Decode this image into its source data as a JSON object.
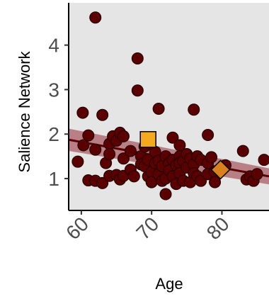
{
  "chart_data": {
    "type": "scatter",
    "title": "",
    "xlabel": "Age",
    "ylabel": "Salience Network",
    "xlim": [
      58.3,
      86.7
    ],
    "ylim": [
      0.3,
      4.95
    ],
    "xticks": [
      60,
      70,
      80
    ],
    "xtick_labels": [
      "60",
      "70",
      "80"
    ],
    "yticks": [
      1,
      2,
      3,
      4
    ],
    "ytick_labels": [
      "1",
      "2",
      "3",
      "4"
    ],
    "grid": false,
    "legend": "none",
    "colors": {
      "panel_background": "#e5e5e5",
      "points": "#5a0000",
      "point_outline": "#1a0000",
      "regression_line": "#5a0000",
      "confidence_band": "#a85e64",
      "square_marker": "#f5a91e",
      "diamond_marker": "#d9811c"
    },
    "series": [
      {
        "points": [
          [
            59.5,
            1.38
          ],
          [
            60.2,
            2.48
          ],
          [
            60.3,
            1.75
          ],
          [
            61,
            1.97
          ],
          [
            61,
            0.96
          ],
          [
            62,
            4.62
          ],
          [
            62,
            1.65
          ],
          [
            62,
            0.95
          ],
          [
            63,
            2.43
          ],
          [
            63,
            0.9
          ],
          [
            63.5,
            1.35
          ],
          [
            64,
            1.78
          ],
          [
            64,
            1.55
          ],
          [
            64,
            1.06
          ],
          [
            64.5,
            1.95
          ],
          [
            65,
            1.85
          ],
          [
            65,
            1.08
          ],
          [
            65.5,
            2.03
          ],
          [
            65.5,
            0.98
          ],
          [
            66,
            1.45
          ],
          [
            66,
            1.06
          ],
          [
            66,
            1.95
          ],
          [
            67,
            1.62
          ],
          [
            67,
            1.2
          ],
          [
            67.5,
            1.05
          ],
          [
            68,
            3.7
          ],
          [
            68,
            2.98
          ],
          [
            68.5,
            1.5
          ],
          [
            68.5,
            1.32
          ],
          [
            69,
            1.72
          ],
          [
            69,
            1.28
          ],
          [
            69.5,
            1.42
          ],
          [
            69.5,
            1.05
          ],
          [
            70,
            1.15
          ],
          [
            70,
            0.92
          ],
          [
            70.5,
            1.6
          ],
          [
            70.5,
            1.35
          ],
          [
            71,
            2.57
          ],
          [
            71,
            1.4
          ],
          [
            71,
            1.1
          ],
          [
            71.5,
            1.28
          ],
          [
            71.5,
            0.95
          ],
          [
            72,
            1.5
          ],
          [
            72,
            0.65
          ],
          [
            72,
            1.0
          ],
          [
            72.5,
            1.35
          ],
          [
            72.5,
            1.18
          ],
          [
            73,
            1.92
          ],
          [
            73,
            1.42
          ],
          [
            73,
            1.05
          ],
          [
            73.5,
            1.3
          ],
          [
            73.5,
            0.88
          ],
          [
            74,
            1.75
          ],
          [
            74,
            1.5
          ],
          [
            74,
            1.35
          ],
          [
            74,
            1.12
          ],
          [
            74.5,
            1.4
          ],
          [
            74.5,
            0.95
          ],
          [
            75,
            1.55
          ],
          [
            75,
            1.25
          ],
          [
            75.5,
            1.45
          ],
          [
            75.5,
            0.92
          ],
          [
            76,
            2.55
          ],
          [
            76,
            1.32
          ],
          [
            76,
            1.12
          ],
          [
            76.5,
            1.5
          ],
          [
            76.5,
            1.05
          ],
          [
            77,
            1.42
          ],
          [
            77,
            0.95
          ],
          [
            78,
            1.98
          ],
          [
            78,
            1.35
          ],
          [
            78,
            1.1
          ],
          [
            78.5,
            1.48
          ],
          [
            79,
            1.15
          ],
          [
            79,
            0.92
          ],
          [
            80.5,
            1.3
          ],
          [
            83,
            1.62
          ],
          [
            83.5,
            0.98
          ],
          [
            84,
            1.05
          ],
          [
            84.5,
            0.95
          ],
          [
            85,
            1.1
          ],
          [
            86,
            1.42
          ]
        ]
      }
    ],
    "regression": {
      "x": [
        58.3,
        86.7
      ],
      "y": [
        1.87,
        1.05
      ],
      "ci_lower": [
        1.62,
        0.87
      ],
      "ci_upper": [
        2.12,
        1.23
      ]
    },
    "highlight_markers": [
      {
        "shape": "square",
        "x": 69.5,
        "y": 1.88,
        "color": "#f5a91e"
      },
      {
        "shape": "diamond",
        "x": 79.8,
        "y": 1.2,
        "color": "#d9811c"
      }
    ]
  }
}
